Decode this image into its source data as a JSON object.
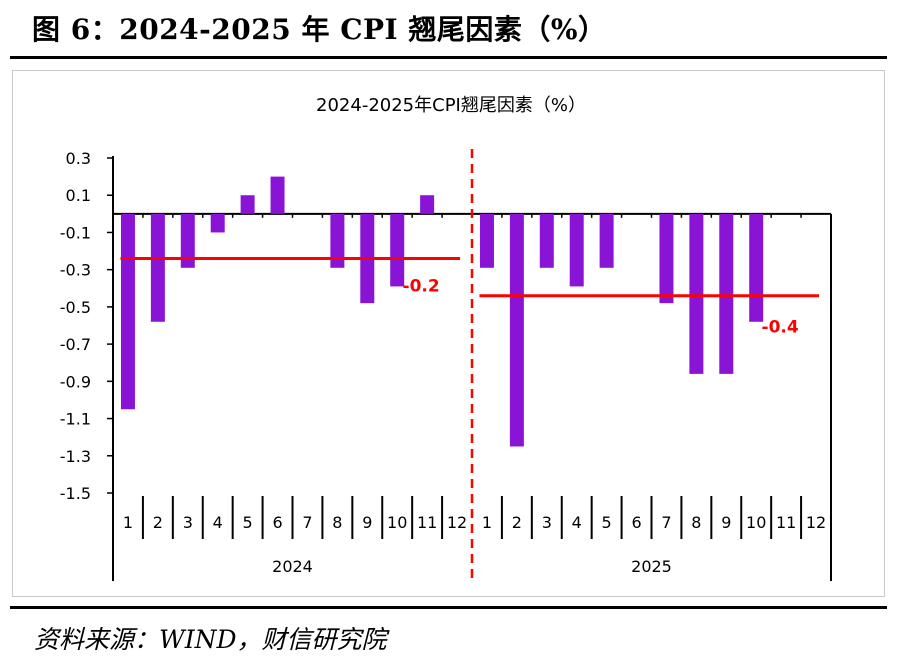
{
  "figure_title": "图 6：2024-2025 年 CPI 翘尾因素（%）",
  "source": "资料来源：WIND，财信研究院",
  "colors": {
    "bar": "#8a14d6",
    "average_line": "#ff0000",
    "axis": "#000000"
  },
  "chart_data": {
    "type": "bar",
    "title": "2024-2025年CPI翘尾因素（%）",
    "xlabel": "",
    "ylabel": "",
    "ylim": [
      -1.5,
      0.3
    ],
    "yticks": [
      "0.3",
      "0.1",
      "-0.1",
      "-0.3",
      "-0.5",
      "-0.7",
      "-0.9",
      "-1.1",
      "-1.3",
      "-1.5"
    ],
    "ytick_values": [
      0.3,
      0.1,
      -0.1,
      -0.3,
      -0.5,
      -0.7,
      -0.9,
      -1.1,
      -1.3,
      -1.5
    ],
    "grid": false,
    "legend": "none",
    "groups": [
      {
        "label": "2024",
        "categories": [
          "1",
          "2",
          "3",
          "4",
          "5",
          "6",
          "7",
          "8",
          "9",
          "10",
          "11",
          "12"
        ],
        "values": [
          -1.05,
          -0.58,
          -0.29,
          -0.1,
          0.1,
          0.2,
          0,
          -0.29,
          -0.48,
          -0.39,
          0.1,
          0
        ],
        "average": -0.24,
        "average_label": "-0.2"
      },
      {
        "label": "2025",
        "categories": [
          "1",
          "2",
          "3",
          "4",
          "5",
          "6",
          "7",
          "8",
          "9",
          "10",
          "11",
          "12"
        ],
        "values": [
          -0.29,
          -1.25,
          -0.29,
          -0.39,
          -0.29,
          0,
          -0.48,
          -0.86,
          -0.86,
          -0.58,
          0,
          0
        ],
        "average": -0.44,
        "average_label": "-0.4"
      }
    ]
  }
}
